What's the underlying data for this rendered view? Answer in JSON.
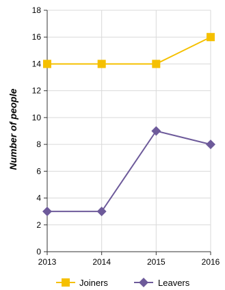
{
  "chart_data": {
    "type": "line",
    "x": [
      "2013",
      "2014",
      "2015",
      "2016"
    ],
    "ylabel": "Number of people",
    "xlabel": "",
    "ylim": [
      0,
      18
    ],
    "ytick_step": 2,
    "grid": true,
    "legend_position": "bottom",
    "series": [
      {
        "name": "Joiners",
        "values": [
          14,
          14,
          14,
          16
        ],
        "color": "#f5c000",
        "marker": "square"
      },
      {
        "name": "Leavers",
        "values": [
          3,
          3,
          9,
          8
        ],
        "color": "#6d5a9a",
        "marker": "diamond"
      }
    ]
  }
}
